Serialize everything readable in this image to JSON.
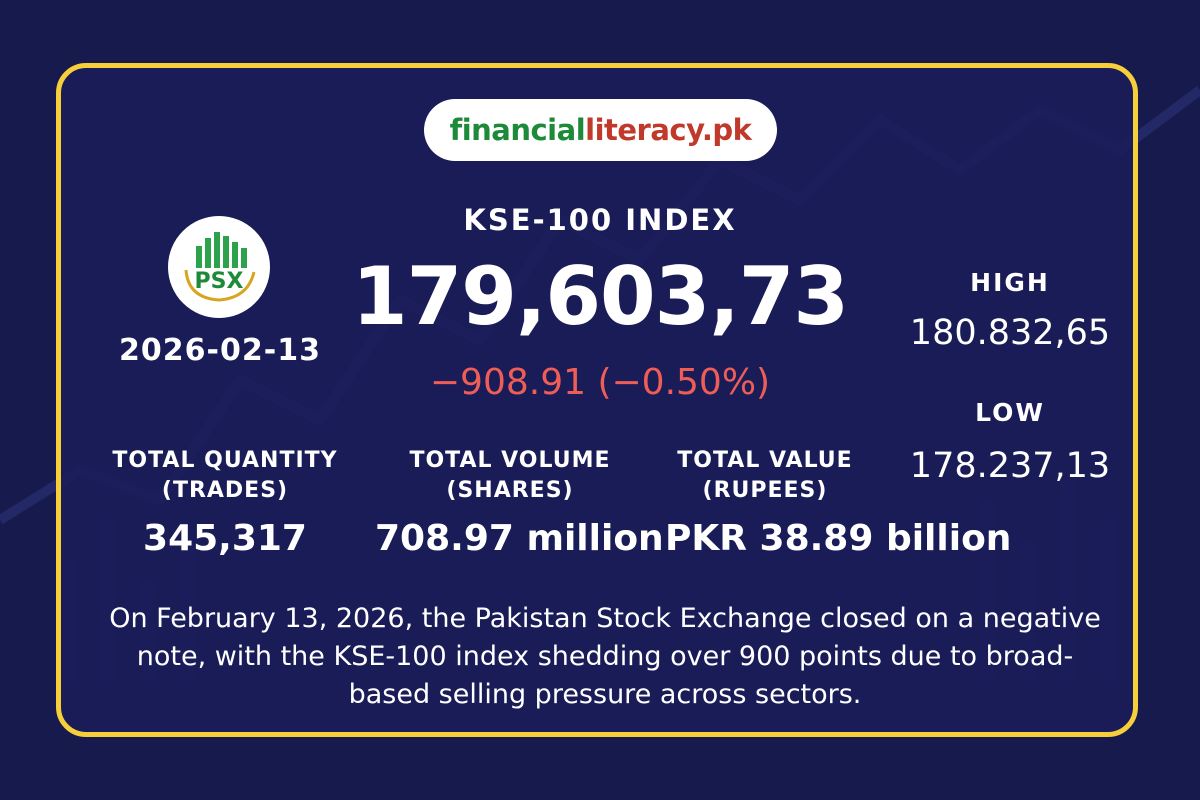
{
  "brand": {
    "part1": "financial",
    "part2": "literacy.pk"
  },
  "logo": {
    "text": "PSX"
  },
  "date": "2026-02-13",
  "index": {
    "title": "KSE-100 INDEX",
    "value": "179,603,73",
    "change": "−908.91 (−0.50%)"
  },
  "high": {
    "label": "HIGH",
    "value": "180.832,65"
  },
  "low": {
    "label": "LOW",
    "value": "178.237,13"
  },
  "stats": [
    {
      "label1": "TOTAL QUANTITY",
      "label2": "(TRADES)",
      "value": "345,317"
    },
    {
      "label1": "TOTAL VOLUME",
      "label2": "(SHARES)",
      "value": "708.97 million"
    },
    {
      "label1": "TOTAL VALUE",
      "label2": "(RUPEES)",
      "value": "PKR 38.89 billion"
    }
  ],
  "description": {
    "line1": "On February 13, 2026, the Pakistan Stock Exchange closed on a negative",
    "line2": "note, with the KSE-100 index shedding over 900 points due to broad-",
    "line3": "based selling pressure across sectors."
  },
  "colors": {
    "accent": "#f6cf3a",
    "negative": "#ef5d57",
    "brand_green": "#1d8a3a",
    "brand_red": "#c0392b",
    "background": "#171b4f"
  }
}
